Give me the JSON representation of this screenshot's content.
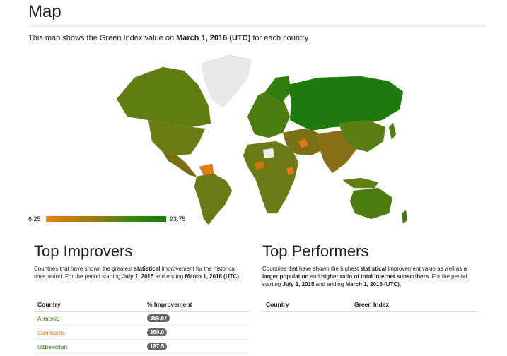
{
  "header": {
    "title": "Map"
  },
  "intro": {
    "prefix": "This map shows the Green Index value on ",
    "date": "March 1, 2016 (UTC)",
    "suffix": " for each country."
  },
  "legend": {
    "min": "6.25",
    "max": "93.75"
  },
  "colors": {
    "low": "#f07f0f",
    "mid": "#8a7a12",
    "high": "#1e7a0c",
    "nodata": "#eeeeee"
  },
  "improvers": {
    "title": "Top Improvers",
    "desc": {
      "a": "Countries that have shown the greatest ",
      "b": "statistical",
      "c": " improvement for the historical time period. For the period starting ",
      "d": "July 1, 2015",
      "e": " and ending ",
      "f": "March 1, 2016 (UTC)",
      "g": "."
    },
    "col_country": "Country",
    "col_value": "% Improvement",
    "rows": [
      {
        "country": "Armenia",
        "value": "366.67",
        "color": "#2d7a0c"
      },
      {
        "country": "Cambodia",
        "value": "350.0",
        "color": "#e07a10"
      },
      {
        "country": "Uzbekistan",
        "value": "187.5",
        "color": "#2d7a0c"
      }
    ]
  },
  "performers": {
    "title": "Top Performers",
    "desc": {
      "a": "Countries that have shown the highest ",
      "b": "statistical",
      "c": " improvement value as well as a ",
      "d": "larger population",
      "e": " and ",
      "f": "higher ratio of total internet subscribers",
      "g": ". For the period starting ",
      "h": "July 1, 2015",
      "i": " and ending ",
      "j": "March 1, 2016 (UTC)",
      "k": "."
    },
    "col_country": "Country",
    "col_value": "Green Index"
  }
}
